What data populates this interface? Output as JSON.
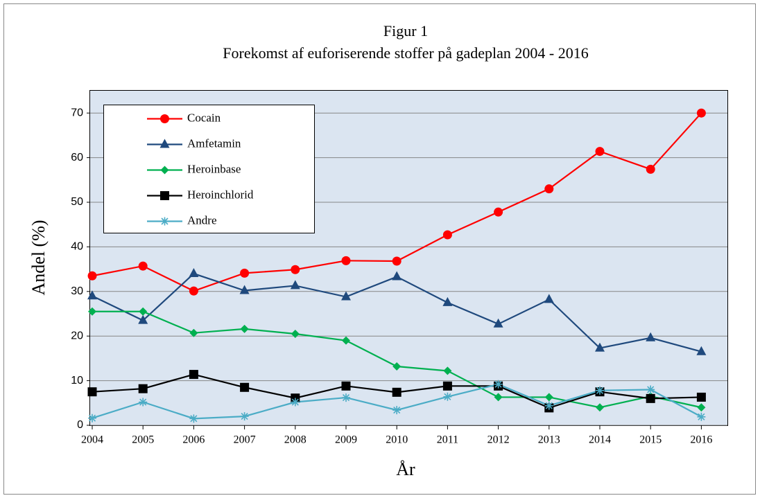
{
  "chart_data": {
    "type": "line",
    "title": "Figur 1",
    "subtitle": "Forekomst af euforiserende stoffer på gadeplan 2004 - 2016",
    "x_label": "År",
    "y_label": "Andel (%)",
    "categories": [
      "2004",
      "2005",
      "2006",
      "2007",
      "2008",
      "2009",
      "2010",
      "2011",
      "2012",
      "2013",
      "2014",
      "2015",
      "2016"
    ],
    "series": [
      {
        "name": "Cocain",
        "color": "#ff0000",
        "marker": "circle",
        "values": [
          33.5,
          35.7,
          30.1,
          34.1,
          34.9,
          36.9,
          36.8,
          42.7,
          47.8,
          53,
          61.4,
          57.4,
          70
        ]
      },
      {
        "name": "Amfetamin",
        "color": "#1f497d",
        "marker": "triangle",
        "values": [
          29,
          23.5,
          34,
          30.2,
          31.3,
          28.8,
          33.3,
          27.5,
          22.7,
          28.2,
          17.3,
          19.6,
          16.5
        ]
      },
      {
        "name": "Heroinbase",
        "color": "#00b050",
        "marker": "diamond",
        "values": [
          25.5,
          25.5,
          20.7,
          21.6,
          20.5,
          19,
          13.2,
          12.2,
          6.3,
          6.3,
          4,
          6.5,
          4
        ]
      },
      {
        "name": "Heroinchlorid",
        "color": "#000000",
        "marker": "square",
        "values": [
          7.5,
          8.2,
          11.4,
          8.5,
          6.1,
          8.8,
          7.4,
          8.8,
          8.8,
          3.9,
          7.5,
          6,
          6.3
        ]
      },
      {
        "name": "Andre",
        "color": "#4bacc6",
        "marker": "asterisk",
        "values": [
          1.6,
          5.2,
          1.5,
          2,
          5.2,
          6.2,
          3.4,
          6.4,
          9.2,
          4.4,
          7.8,
          8,
          1.9
        ]
      }
    ],
    "ylim": [
      0,
      75
    ],
    "yticks": [
      0,
      10,
      20,
      30,
      40,
      50,
      60,
      70
    ],
    "grid": true,
    "legend": "upper-left"
  }
}
